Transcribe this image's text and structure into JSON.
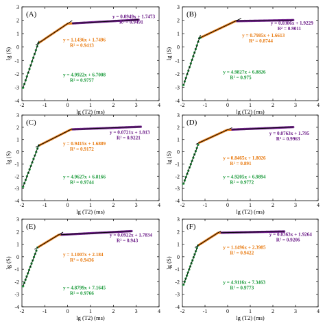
{
  "colors": {
    "green": "#1a9a3a",
    "orange": "#e87a10",
    "purple": "#6a1a86",
    "data_points": "#1a6a2a",
    "fit_line": "#000000"
  },
  "chart_data": [
    {
      "type": "scatter",
      "panel": "(A)",
      "xlabel": "lg (T2) (ms)",
      "ylabel": "lg (S)",
      "xlim": [
        -2,
        4
      ],
      "ylim": [
        -4,
        3
      ],
      "xticks": [
        "-2",
        "-1",
        "0",
        "1",
        "2",
        "3",
        "4"
      ],
      "yticks": [
        "-4",
        "-3",
        "-2",
        "-1",
        "0",
        "1",
        "2",
        "3"
      ],
      "grid": false,
      "data_range": [
        -1.95,
        3.1
      ],
      "fits": [
        {
          "equation": "y = 4.9922x + 6.7008",
          "r2": "R² = 0.9757",
          "slope": 4.9922,
          "intercept": 6.7008,
          "x_range": [
            -1.95,
            -1.25
          ]
        },
        {
          "equation": "y = 1.1436x + 1.7496",
          "r2": "R² = 0.9413",
          "slope": 1.1436,
          "intercept": 1.7496,
          "x_range": [
            -1.4,
            0.2
          ]
        },
        {
          "equation": "y = 0.0949x + 1.7473",
          "r2": "R² = 0.9491",
          "slope": 0.0949,
          "intercept": 1.7473,
          "x_range": [
            0.2,
            3.1
          ]
        }
      ]
    },
    {
      "type": "scatter",
      "panel": "(B)",
      "xlabel": "lg (T2) (ms)",
      "ylabel": "lg (S)",
      "xlim": [
        -2,
        4
      ],
      "ylim": [
        -4,
        3
      ],
      "xticks": [
        "-2",
        "-1",
        "0",
        "1",
        "2",
        "3",
        "4"
      ],
      "yticks": [
        "-4",
        "-3",
        "-2",
        "-1",
        "0",
        "1",
        "2",
        "3"
      ],
      "grid": false,
      "data_range": [
        -1.95,
        2.9
      ],
      "fits": [
        {
          "equation": "y = 4.9827x + 6.8826",
          "r2": "R² = 0.975",
          "slope": 4.9827,
          "intercept": 6.8826,
          "x_range": [
            -1.95,
            -1.2
          ]
        },
        {
          "equation": "y = 0.7985x + 1.6613",
          "r2": "R² = 0.8744",
          "slope": 0.7985,
          "intercept": 1.6613,
          "x_range": [
            -1.3,
            0.6
          ]
        },
        {
          "equation": "y = 0.0306x + 1.9229",
          "r2": "R² = 0.9011",
          "slope": 0.0306,
          "intercept": 1.9229,
          "x_range": [
            0.4,
            2.9
          ]
        }
      ]
    },
    {
      "type": "scatter",
      "panel": "(C)",
      "xlabel": "lg (T2) (ms)",
      "ylabel": "lg (S)",
      "xlim": [
        -2,
        4
      ],
      "ylim": [
        -4,
        3
      ],
      "xticks": [
        "-2",
        "-1",
        "0",
        "1",
        "2",
        "3",
        "4"
      ],
      "yticks": [
        "-4",
        "-3",
        "-2",
        "-1",
        "0",
        "1",
        "2",
        "3"
      ],
      "grid": false,
      "data_range": [
        -1.95,
        3.2
      ],
      "fits": [
        {
          "equation": "y = 4.9627x + 6.8166",
          "r2": "R² = 0.9744",
          "slope": 4.9627,
          "intercept": 6.8166,
          "x_range": [
            -1.95,
            -1.25
          ]
        },
        {
          "equation": "y = 0.9415x + 1.6889",
          "r2": "R² = 0.9172",
          "slope": 0.9415,
          "intercept": 1.6889,
          "x_range": [
            -1.4,
            0.2
          ]
        },
        {
          "equation": "y = 0.0721x + 1.813",
          "r2": "R² = 0.9221",
          "slope": 0.0721,
          "intercept": 1.813,
          "x_range": [
            0.2,
            3.2
          ]
        }
      ]
    },
    {
      "type": "scatter",
      "panel": "(D)",
      "xlabel": "lg (T2) (ms)",
      "ylabel": "lg (S)",
      "xlim": [
        -2,
        4
      ],
      "ylim": [
        -4,
        3
      ],
      "xticks": [
        "-2",
        "-1",
        "0",
        "1",
        "2",
        "3",
        "4"
      ],
      "yticks": [
        "-4",
        "-3",
        "-2",
        "-1",
        "0",
        "1",
        "2",
        "3"
      ],
      "grid": false,
      "data_range": [
        -1.95,
        2.9
      ],
      "fits": [
        {
          "equation": "y = 4.9205x + 6.9894",
          "r2": "R² = 0.9772",
          "slope": 4.9205,
          "intercept": 6.9894,
          "x_range": [
            -1.95,
            -1.3
          ]
        },
        {
          "equation": "y = 0.8465x + 1.8026",
          "r2": "R² = 0.891",
          "slope": 0.8465,
          "intercept": 1.8026,
          "x_range": [
            -1.4,
            0.2
          ]
        },
        {
          "equation": "y = 0.0763x + 1.795",
          "r2": "R² = 0.9963",
          "slope": 0.0763,
          "intercept": 1.795,
          "x_range": [
            0.2,
            2.9
          ]
        }
      ]
    },
    {
      "type": "scatter",
      "panel": "(E)",
      "xlabel": "lg (T2) (ms)",
      "ylabel": "lg (S)",
      "xlim": [
        -2,
        4
      ],
      "ylim": [
        -4,
        3
      ],
      "xticks": [
        "-2",
        "-1",
        "0",
        "1",
        "2",
        "3",
        "4"
      ],
      "yticks": [
        "-4",
        "-3",
        "-2",
        "-1",
        "0",
        "1",
        "2",
        "3"
      ],
      "grid": false,
      "data_range": [
        -1.95,
        2.8
      ],
      "fits": [
        {
          "equation": "y = 4.8799x + 7.1645",
          "r2": "R² = 0.9766",
          "slope": 4.8799,
          "intercept": 7.1645,
          "x_range": [
            -1.95,
            -1.35
          ]
        },
        {
          "equation": "y = 1.1007x + 2.184",
          "r2": "R² = 0.9436",
          "slope": 1.1007,
          "intercept": 2.184,
          "x_range": [
            -1.45,
            -0.2
          ]
        },
        {
          "equation": "y = 0.0922x + 1.7834",
          "r2": "R² = 0.943",
          "slope": 0.0922,
          "intercept": 1.7834,
          "x_range": [
            -0.3,
            2.8
          ]
        }
      ]
    },
    {
      "type": "scatter",
      "panel": "(F)",
      "xlabel": "lg (T2) (ms)",
      "ylabel": "lg (S)",
      "xlim": [
        -2,
        4
      ],
      "ylim": [
        -4,
        3
      ],
      "xticks": [
        "-2",
        "-1",
        "0",
        "1",
        "2",
        "3",
        "4"
      ],
      "yticks": [
        "-4",
        "-3",
        "-2",
        "-1",
        "0",
        "1",
        "2",
        "3"
      ],
      "grid": false,
      "data_range": [
        -1.95,
        2.5
      ],
      "fits": [
        {
          "equation": "y = 4.9116x + 7.3463",
          "r2": "R² = 0.9773",
          "slope": 4.9116,
          "intercept": 7.3463,
          "x_range": [
            -1.95,
            -1.3
          ]
        },
        {
          "equation": "y = 1.1496x + 2.3985",
          "r2": "R² = 0.9422",
          "slope": 1.1496,
          "intercept": 2.3985,
          "x_range": [
            -1.45,
            -0.3
          ]
        },
        {
          "equation": "y = 0.0363x + 1.9264",
          "r2": "R² = 0.9206",
          "slope": 0.0363,
          "intercept": 1.9264,
          "x_range": [
            -0.3,
            2.5
          ]
        }
      ]
    }
  ]
}
